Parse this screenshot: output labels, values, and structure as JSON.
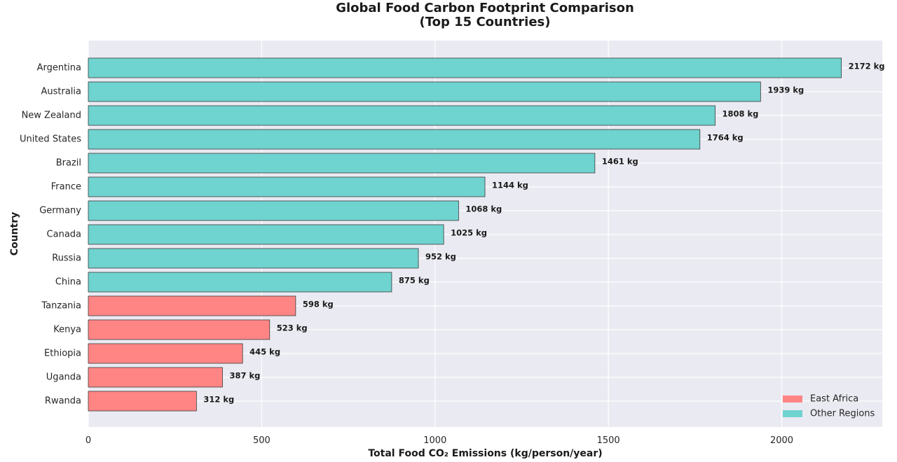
{
  "chart_data": {
    "type": "bar",
    "orientation": "horizontal",
    "title": "Global Food Carbon Footprint Comparison\n(Top 15 Countries)",
    "xlabel": "Total Food CO₂ Emissions (kg/person/year)",
    "ylabel": "Country",
    "xlim": [
      0,
      2290
    ],
    "xticks": [
      0,
      500,
      1000,
      1500,
      2000
    ],
    "value_suffix": " kg",
    "grid": true,
    "legend_position": "bottom-right",
    "categories": [
      "Argentina",
      "Australia",
      "New Zealand",
      "United States",
      "Brazil",
      "France",
      "Germany",
      "Canada",
      "Russia",
      "China",
      "Tanzania",
      "Kenya",
      "Ethiopia",
      "Uganda",
      "Rwanda"
    ],
    "values": [
      2172,
      1939,
      1808,
      1764,
      1461,
      1144,
      1068,
      1025,
      952,
      875,
      598,
      523,
      445,
      387,
      312
    ],
    "groups": [
      "Other Regions",
      "Other Regions",
      "Other Regions",
      "Other Regions",
      "Other Regions",
      "Other Regions",
      "Other Regions",
      "Other Regions",
      "Other Regions",
      "Other Regions",
      "East Africa",
      "East Africa",
      "East Africa",
      "East Africa",
      "East Africa"
    ],
    "legend": [
      {
        "name": "East Africa",
        "color": "#ff8585"
      },
      {
        "name": "Other Regions",
        "color": "#6fd3cf"
      }
    ]
  },
  "colors": {
    "plot_background": "#eaeaf2",
    "grid": "#ffffff",
    "bar_edge": "#3a3a3a"
  }
}
